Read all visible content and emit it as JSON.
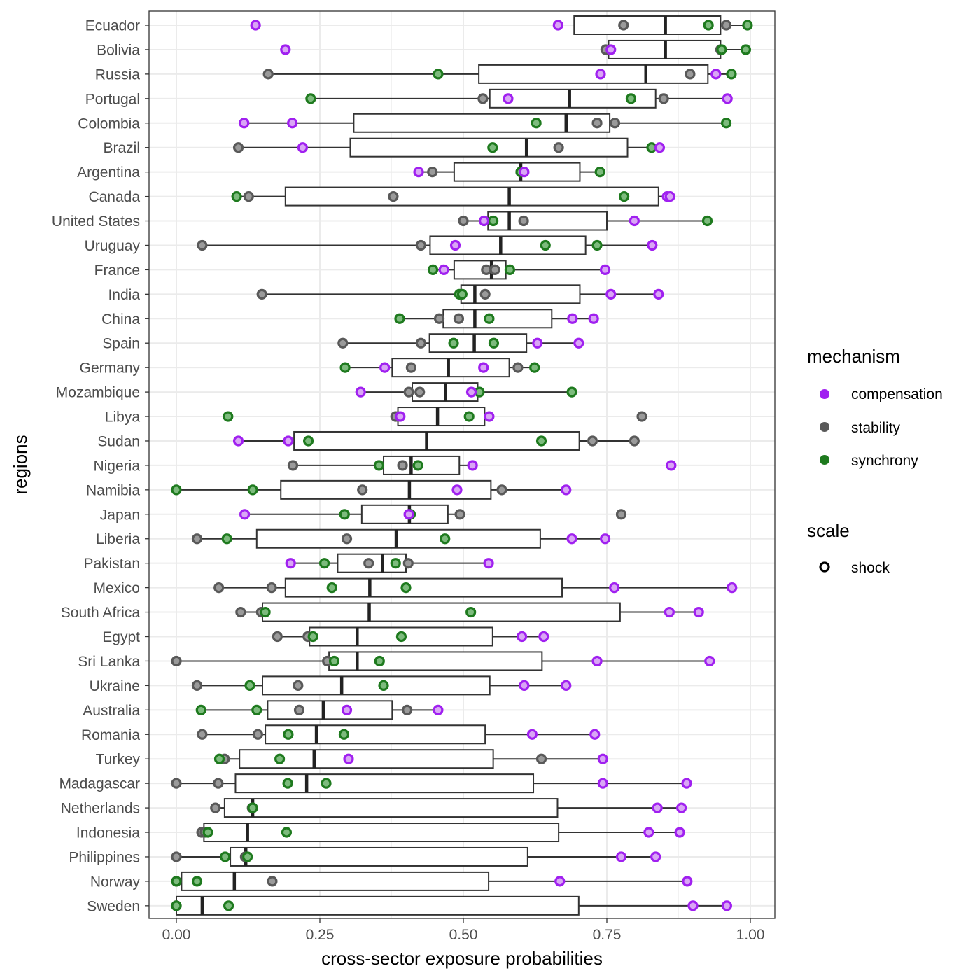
{
  "chart_data": {
    "type": "boxplot",
    "xlabel": "cross-sector exposure probabilities",
    "ylabel": "regions",
    "xlim": [
      -0.05,
      1.05
    ],
    "xticks": [
      0.0,
      0.25,
      0.5,
      0.75,
      1.0
    ],
    "xtick_labels": [
      "0.00",
      "0.25",
      "0.50",
      "0.75",
      "1.00"
    ],
    "grid": true,
    "legend_position": "right",
    "colors": {
      "compensation": "#a020f0",
      "stability": "#595959",
      "synchrony": "#1e7a1e"
    },
    "legend": {
      "mechanism": {
        "title": "mechanism",
        "items": [
          "compensation",
          "stability",
          "synchrony"
        ]
      },
      "scale": {
        "title": "scale",
        "items": [
          "shock"
        ]
      }
    },
    "regions": [
      {
        "name": "Ecuador",
        "box": {
          "q1": 0.693,
          "median": 0.852,
          "q3": 0.948,
          "whisker_low": 0.693,
          "whisker_high": 0.995
        },
        "compensation": [
          0.138,
          0.665
        ],
        "stability": [
          0.779,
          0.958
        ],
        "synchrony": [
          0.927,
          0.995
        ]
      },
      {
        "name": "Bolivia",
        "box": {
          "q1": 0.753,
          "median": 0.852,
          "q3": 0.948,
          "whisker_low": 0.753,
          "whisker_high": 0.992
        },
        "compensation": [
          0.19,
          0.757
        ],
        "stability": [
          0.748,
          0.948
        ],
        "synchrony": [
          0.95,
          0.992
        ]
      },
      {
        "name": "Russia",
        "box": {
          "q1": 0.527,
          "median": 0.818,
          "q3": 0.926,
          "whisker_low": 0.16,
          "whisker_high": 0.967
        },
        "compensation": [
          0.739,
          0.94
        ],
        "stability": [
          0.16,
          0.895
        ],
        "synchrony": [
          0.456,
          0.967
        ]
      },
      {
        "name": "Portugal",
        "box": {
          "q1": 0.546,
          "median": 0.685,
          "q3": 0.835,
          "whisker_low": 0.234,
          "whisker_high": 0.96
        },
        "compensation": [
          0.578,
          0.96
        ],
        "stability": [
          0.534,
          0.849
        ],
        "synchrony": [
          0.234,
          0.792
        ]
      },
      {
        "name": "Colombia",
        "box": {
          "q1": 0.309,
          "median": 0.679,
          "q3": 0.755,
          "whisker_low": 0.118,
          "whisker_high": 0.958
        },
        "compensation": [
          0.118,
          0.202
        ],
        "stability": [
          0.733,
          0.764
        ],
        "synchrony": [
          0.627,
          0.958
        ]
      },
      {
        "name": "Brazil",
        "box": {
          "q1": 0.303,
          "median": 0.61,
          "q3": 0.786,
          "whisker_low": 0.108,
          "whisker_high": 0.842
        },
        "compensation": [
          0.22,
          0.842
        ],
        "stability": [
          0.108,
          0.666
        ],
        "synchrony": [
          0.551,
          0.828
        ]
      },
      {
        "name": "Argentina",
        "box": {
          "q1": 0.484,
          "median": 0.6,
          "q3": 0.703,
          "whisker_low": 0.422,
          "whisker_high": 0.738
        },
        "compensation": [
          0.422,
          0.606
        ],
        "stability": [
          0.446,
          0.6
        ],
        "synchrony": [
          0.6,
          0.738
        ]
      },
      {
        "name": "Canada",
        "box": {
          "q1": 0.19,
          "median": 0.58,
          "q3": 0.84,
          "whisker_low": 0.105,
          "whisker_high": 0.86
        },
        "compensation": [
          0.855,
          0.86
        ],
        "stability": [
          0.126,
          0.378
        ],
        "synchrony": [
          0.105,
          0.78
        ]
      },
      {
        "name": "United States",
        "box": {
          "q1": 0.543,
          "median": 0.58,
          "q3": 0.75,
          "whisker_low": 0.5,
          "whisker_high": 0.925
        },
        "compensation": [
          0.536,
          0.798
        ],
        "stability": [
          0.5,
          0.605
        ],
        "synchrony": [
          0.552,
          0.925
        ]
      },
      {
        "name": "Uruguay",
        "box": {
          "q1": 0.442,
          "median": 0.565,
          "q3": 0.713,
          "whisker_low": 0.045,
          "whisker_high": 0.829
        },
        "compensation": [
          0.486,
          0.829
        ],
        "stability": [
          0.045,
          0.426
        ],
        "synchrony": [
          0.643,
          0.733
        ]
      },
      {
        "name": "France",
        "box": {
          "q1": 0.484,
          "median": 0.549,
          "q3": 0.574,
          "whisker_low": 0.447,
          "whisker_high": 0.747
        },
        "compensation": [
          0.466,
          0.747
        ],
        "stability": [
          0.54,
          0.555
        ],
        "synchrony": [
          0.447,
          0.581
        ]
      },
      {
        "name": "India",
        "box": {
          "q1": 0.496,
          "median": 0.52,
          "q3": 0.703,
          "whisker_low": 0.149,
          "whisker_high": 0.84
        },
        "compensation": [
          0.757,
          0.84
        ],
        "stability": [
          0.149,
          0.538
        ],
        "synchrony": [
          0.493,
          0.498
        ]
      },
      {
        "name": "China",
        "box": {
          "q1": 0.465,
          "median": 0.52,
          "q3": 0.654,
          "whisker_low": 0.389,
          "whisker_high": 0.727
        },
        "compensation": [
          0.69,
          0.727
        ],
        "stability": [
          0.458,
          0.492
        ],
        "synchrony": [
          0.389,
          0.545
        ]
      },
      {
        "name": "Spain",
        "box": {
          "q1": 0.441,
          "median": 0.519,
          "q3": 0.61,
          "whisker_low": 0.29,
          "whisker_high": 0.701
        },
        "compensation": [
          0.629,
          0.701
        ],
        "stability": [
          0.29,
          0.426
        ],
        "synchrony": [
          0.483,
          0.553
        ]
      },
      {
        "name": "Germany",
        "box": {
          "q1": 0.376,
          "median": 0.474,
          "q3": 0.58,
          "whisker_low": 0.294,
          "whisker_high": 0.624
        },
        "compensation": [
          0.363,
          0.535
        ],
        "stability": [
          0.409,
          0.595
        ],
        "synchrony": [
          0.294,
          0.624
        ]
      },
      {
        "name": "Mozambique",
        "box": {
          "q1": 0.411,
          "median": 0.469,
          "q3": 0.525,
          "whisker_low": 0.321,
          "whisker_high": 0.689
        },
        "compensation": [
          0.321,
          0.514
        ],
        "stability": [
          0.405,
          0.424
        ],
        "synchrony": [
          0.528,
          0.689
        ]
      },
      {
        "name": "Libya",
        "box": {
          "q1": 0.386,
          "median": 0.455,
          "q3": 0.537,
          "whisker_low": 0.385,
          "whisker_high": 0.545
        },
        "compensation": [
          0.39,
          0.545
        ],
        "stability": [
          0.382,
          0.811
        ],
        "synchrony": [
          0.09,
          0.51
        ]
      },
      {
        "name": "Sudan",
        "box": {
          "q1": 0.205,
          "median": 0.436,
          "q3": 0.702,
          "whisker_low": 0.108,
          "whisker_high": 0.798
        },
        "compensation": [
          0.108,
          0.195
        ],
        "stability": [
          0.725,
          0.798
        ],
        "synchrony": [
          0.23,
          0.636
        ]
      },
      {
        "name": "Nigeria",
        "box": {
          "q1": 0.361,
          "median": 0.409,
          "q3": 0.493,
          "whisker_low": 0.203,
          "whisker_high": 0.516
        },
        "compensation": [
          0.516,
          0.862
        ],
        "stability": [
          0.203,
          0.394
        ],
        "synchrony": [
          0.353,
          0.421
        ]
      },
      {
        "name": "Namibia",
        "box": {
          "q1": 0.182,
          "median": 0.406,
          "q3": 0.548,
          "whisker_low": 0.0,
          "whisker_high": 0.679
        },
        "compensation": [
          0.489,
          0.679
        ],
        "stability": [
          0.324,
          0.567
        ],
        "synchrony": [
          0.0,
          0.133
        ]
      },
      {
        "name": "Japan",
        "box": {
          "q1": 0.323,
          "median": 0.406,
          "q3": 0.473,
          "whisker_low": 0.119,
          "whisker_high": 0.494
        },
        "compensation": [
          0.119,
          0.405
        ],
        "stability": [
          0.494,
          0.775
        ],
        "synchrony": [
          0.293,
          0.408
        ]
      },
      {
        "name": "Liberia",
        "box": {
          "q1": 0.14,
          "median": 0.383,
          "q3": 0.634,
          "whisker_low": 0.036,
          "whisker_high": 0.747
        },
        "compensation": [
          0.689,
          0.747
        ],
        "stability": [
          0.036,
          0.297
        ],
        "synchrony": [
          0.088,
          0.468
        ]
      },
      {
        "name": "Pakistan",
        "box": {
          "q1": 0.281,
          "median": 0.359,
          "q3": 0.4,
          "whisker_low": 0.199,
          "whisker_high": 0.544
        },
        "compensation": [
          0.199,
          0.544
        ],
        "stability": [
          0.335,
          0.404
        ],
        "synchrony": [
          0.258,
          0.382
        ]
      },
      {
        "name": "Mexico",
        "box": {
          "q1": 0.19,
          "median": 0.337,
          "q3": 0.672,
          "whisker_low": 0.074,
          "whisker_high": 0.968
        },
        "compensation": [
          0.763,
          0.968
        ],
        "stability": [
          0.074,
          0.166
        ],
        "synchrony": [
          0.271,
          0.4
        ]
      },
      {
        "name": "South Africa",
        "box": {
          "q1": 0.15,
          "median": 0.336,
          "q3": 0.773,
          "whisker_low": 0.112,
          "whisker_high": 0.91
        },
        "compensation": [
          0.859,
          0.91
        ],
        "stability": [
          0.112,
          0.148
        ],
        "synchrony": [
          0.155,
          0.513
        ]
      },
      {
        "name": "Egypt",
        "box": {
          "q1": 0.232,
          "median": 0.315,
          "q3": 0.551,
          "whisker_low": 0.176,
          "whisker_high": 0.64
        },
        "compensation": [
          0.602,
          0.64
        ],
        "stability": [
          0.176,
          0.229
        ],
        "synchrony": [
          0.238,
          0.392
        ]
      },
      {
        "name": "Sri Lanka",
        "box": {
          "q1": 0.266,
          "median": 0.315,
          "q3": 0.637,
          "whisker_low": 0.0,
          "whisker_high": 0.929
        },
        "compensation": [
          0.733,
          0.929
        ],
        "stability": [
          0.0,
          0.263
        ],
        "synchrony": [
          0.275,
          0.354
        ]
      },
      {
        "name": "Ukraine",
        "box": {
          "q1": 0.15,
          "median": 0.288,
          "q3": 0.546,
          "whisker_low": 0.036,
          "whisker_high": 0.679
        },
        "compensation": [
          0.606,
          0.679
        ],
        "stability": [
          0.036,
          0.212
        ],
        "synchrony": [
          0.128,
          0.361
        ]
      },
      {
        "name": "Australia",
        "box": {
          "q1": 0.159,
          "median": 0.256,
          "q3": 0.376,
          "whisker_low": 0.043,
          "whisker_high": 0.456
        },
        "compensation": [
          0.297,
          0.456
        ],
        "stability": [
          0.214,
          0.402
        ],
        "synchrony": [
          0.043,
          0.14
        ]
      },
      {
        "name": "Romania",
        "box": {
          "q1": 0.155,
          "median": 0.244,
          "q3": 0.538,
          "whisker_low": 0.045,
          "whisker_high": 0.729
        },
        "compensation": [
          0.62,
          0.729
        ],
        "stability": [
          0.045,
          0.142
        ],
        "synchrony": [
          0.195,
          0.292
        ]
      },
      {
        "name": "Turkey",
        "box": {
          "q1": 0.11,
          "median": 0.24,
          "q3": 0.552,
          "whisker_low": 0.075,
          "whisker_high": 0.743
        },
        "compensation": [
          0.3,
          0.743
        ],
        "stability": [
          0.084,
          0.636
        ],
        "synchrony": [
          0.075,
          0.18
        ]
      },
      {
        "name": "Madagascar",
        "box": {
          "q1": 0.103,
          "median": 0.227,
          "q3": 0.622,
          "whisker_low": 0.0,
          "whisker_high": 0.889
        },
        "compensation": [
          0.743,
          0.889
        ],
        "stability": [
          0.0,
          0.073
        ],
        "synchrony": [
          0.194,
          0.261
        ]
      },
      {
        "name": "Netherlands",
        "box": {
          "q1": 0.084,
          "median": 0.133,
          "q3": 0.664,
          "whisker_low": 0.068,
          "whisker_high": 0.88
        },
        "compensation": [
          0.838,
          0.88
        ],
        "stability": [
          0.068,
          0.132
        ],
        "synchrony": [
          0.133,
          0.133
        ]
      },
      {
        "name": "Indonesia",
        "box": {
          "q1": 0.048,
          "median": 0.124,
          "q3": 0.666,
          "whisker_low": 0.044,
          "whisker_high": 0.877
        },
        "compensation": [
          0.823,
          0.877
        ],
        "stability": [
          0.044,
          0.05
        ],
        "synchrony": [
          0.055,
          0.192
        ]
      },
      {
        "name": "Philippines",
        "box": {
          "q1": 0.094,
          "median": 0.121,
          "q3": 0.612,
          "whisker_low": 0.0,
          "whisker_high": 0.835
        },
        "compensation": [
          0.775,
          0.835
        ],
        "stability": [
          0.0,
          0.12
        ],
        "synchrony": [
          0.085,
          0.124
        ]
      },
      {
        "name": "Norway",
        "box": {
          "q1": 0.009,
          "median": 0.101,
          "q3": 0.544,
          "whisker_low": 0.0,
          "whisker_high": 0.89
        },
        "compensation": [
          0.668,
          0.89
        ],
        "stability": [
          0.167,
          0.0
        ],
        "synchrony": [
          0.0,
          0.036
        ]
      },
      {
        "name": "Sweden",
        "box": {
          "q1": 0.0,
          "median": 0.045,
          "q3": 0.701,
          "whisker_low": 0.0,
          "whisker_high": 0.959
        },
        "compensation": [
          0.9,
          0.959
        ],
        "stability": [
          0.0,
          0.0
        ],
        "synchrony": [
          0.0,
          0.091
        ]
      }
    ]
  }
}
